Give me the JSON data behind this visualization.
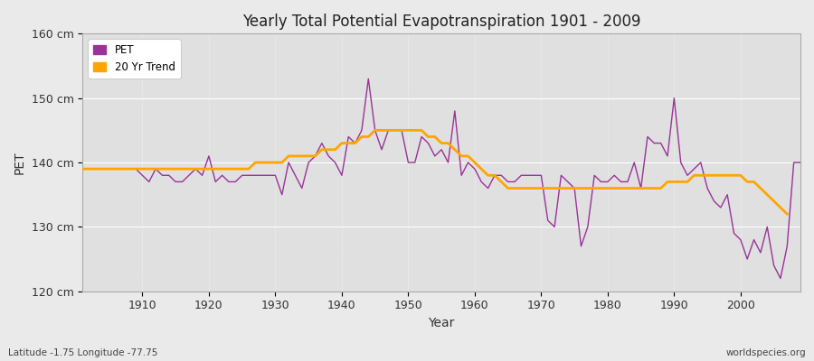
{
  "title": "Yearly Total Potential Evapotranspiration 1901 - 2009",
  "xlabel": "Year",
  "ylabel": "PET",
  "bottom_left": "Latitude -1.75 Longitude -77.75",
  "bottom_right": "worldspecies.org",
  "ylim": [
    120,
    160
  ],
  "yticks": [
    120,
    130,
    140,
    150,
    160
  ],
  "ytick_labels": [
    "120 cm",
    "130 cm",
    "140 cm",
    "150 cm",
    "160 cm"
  ],
  "pet_color": "#993399",
  "trend_color": "#FFA500",
  "fig_bg_color": "#EAEAEA",
  "plot_bg_color": "#E0E0E0",
  "legend_labels": [
    "PET",
    "20 Yr Trend"
  ],
  "years": [
    1901,
    1902,
    1903,
    1904,
    1905,
    1906,
    1907,
    1908,
    1909,
    1910,
    1911,
    1912,
    1913,
    1914,
    1915,
    1916,
    1917,
    1918,
    1919,
    1920,
    1921,
    1922,
    1923,
    1924,
    1925,
    1926,
    1927,
    1928,
    1929,
    1930,
    1931,
    1932,
    1933,
    1934,
    1935,
    1936,
    1937,
    1938,
    1939,
    1940,
    1941,
    1942,
    1943,
    1944,
    1945,
    1946,
    1947,
    1948,
    1949,
    1950,
    1951,
    1952,
    1953,
    1954,
    1955,
    1956,
    1957,
    1958,
    1959,
    1960,
    1961,
    1962,
    1963,
    1964,
    1965,
    1966,
    1967,
    1968,
    1969,
    1970,
    1971,
    1972,
    1973,
    1974,
    1975,
    1976,
    1977,
    1978,
    1979,
    1980,
    1981,
    1982,
    1983,
    1984,
    1985,
    1986,
    1987,
    1988,
    1989,
    1990,
    1991,
    1992,
    1993,
    1994,
    1995,
    1996,
    1997,
    1998,
    1999,
    2000,
    2001,
    2002,
    2003,
    2004,
    2005,
    2006,
    2007,
    2008,
    2009
  ],
  "pet_values": [
    139,
    139,
    139,
    139,
    139,
    139,
    139,
    139,
    139,
    138,
    137,
    139,
    138,
    138,
    137,
    137,
    138,
    139,
    138,
    141,
    137,
    138,
    137,
    137,
    138,
    138,
    138,
    138,
    138,
    138,
    135,
    140,
    138,
    136,
    140,
    141,
    143,
    141,
    140,
    138,
    144,
    143,
    145,
    153,
    145,
    142,
    145,
    145,
    145,
    140,
    140,
    144,
    143,
    141,
    142,
    140,
    148,
    138,
    140,
    139,
    137,
    136,
    138,
    138,
    137,
    137,
    138,
    138,
    138,
    138,
    131,
    130,
    138,
    137,
    136,
    127,
    130,
    138,
    137,
    137,
    138,
    137,
    137,
    140,
    136,
    144,
    143,
    143,
    141,
    150,
    140,
    138,
    139,
    140,
    136,
    134,
    133,
    135,
    129,
    128,
    125,
    128,
    126,
    130,
    124,
    122,
    127,
    140,
    140
  ],
  "trend_values": [
    139,
    139,
    139,
    139,
    139,
    139,
    139,
    139,
    139,
    139,
    139,
    139,
    139,
    139,
    139,
    139,
    139,
    139,
    139,
    139,
    139,
    139,
    139,
    139,
    139,
    139,
    140,
    140,
    140,
    140,
    140,
    141,
    141,
    141,
    141,
    141,
    142,
    142,
    142,
    143,
    143,
    143,
    144,
    144,
    145,
    145,
    145,
    145,
    145,
    145,
    145,
    145,
    144,
    144,
    143,
    143,
    142,
    141,
    141,
    140,
    139,
    138,
    138,
    137,
    136,
    136,
    136,
    136,
    136,
    136,
    136,
    136,
    136,
    136,
    136,
    136,
    136,
    136,
    136,
    136,
    136,
    136,
    136,
    136,
    136,
    136,
    136,
    136,
    137,
    137,
    137,
    137,
    138,
    138,
    138,
    138,
    138,
    138,
    138,
    138,
    137,
    137,
    136,
    135,
    134,
    133,
    132,
    null,
    null
  ]
}
